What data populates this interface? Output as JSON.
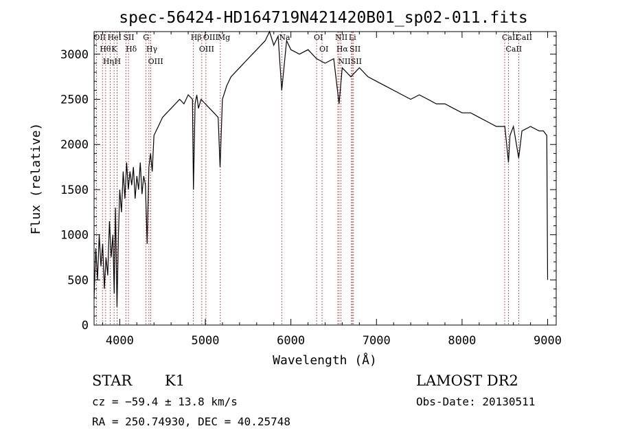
{
  "chart_data": {
    "type": "line",
    "title": "spec-56424-HD164719N421420B01_sp02-011.fits",
    "xlabel": "Wavelength (Å)",
    "ylabel": "Flux (relative)",
    "xlim": [
      3700,
      9100
    ],
    "ylim": [
      0,
      3250
    ],
    "x_ticks": [
      4000,
      5000,
      6000,
      7000,
      8000,
      9000
    ],
    "y_ticks": [
      0,
      500,
      1000,
      1500,
      2000,
      2500,
      3000
    ],
    "grid": false,
    "series": [
      {
        "x": [
          3700,
          3720,
          3740,
          3760,
          3780,
          3800,
          3820,
          3840,
          3860,
          3880,
          3900,
          3920,
          3935,
          3950,
          3968,
          3985,
          4000,
          4020,
          4040,
          4060,
          4080,
          4100,
          4120,
          4140,
          4160,
          4180,
          4200,
          4220,
          4240,
          4260,
          4280,
          4300,
          4320,
          4340,
          4360,
          4380,
          4400,
          4450,
          4500,
          4550,
          4600,
          4650,
          4700,
          4750,
          4800,
          4850,
          4861,
          4880,
          4900,
          4920,
          4950,
          5000,
          5050,
          5100,
          5150,
          5172,
          5200,
          5250,
          5300,
          5400,
          5500,
          5600,
          5700,
          5750,
          5800,
          5850,
          5893,
          5950,
          6000,
          6100,
          6200,
          6300,
          6400,
          6500,
          6563,
          6600,
          6700,
          6800,
          6900,
          7000,
          7100,
          7200,
          7300,
          7400,
          7500,
          7600,
          7700,
          7800,
          7900,
          8000,
          8100,
          8200,
          8300,
          8400,
          8500,
          8542,
          8560,
          8600,
          8662,
          8700,
          8800,
          8900,
          8950,
          8990,
          9000
        ],
        "y": [
          300,
          850,
          500,
          1000,
          650,
          900,
          400,
          750,
          550,
          1150,
          750,
          1000,
          350,
          1300,
          200,
          1000,
          1500,
          1250,
          1700,
          1400,
          1800,
          1500,
          1700,
          1550,
          1750,
          1400,
          1650,
          1500,
          1800,
          1450,
          1650,
          1550,
          900,
          1750,
          1900,
          1700,
          2100,
          2200,
          2300,
          2350,
          2400,
          2450,
          2500,
          2450,
          2550,
          2500,
          1500,
          2450,
          2550,
          2400,
          2500,
          2450,
          2400,
          2350,
          2300,
          1750,
          2500,
          2650,
          2750,
          2850,
          2950,
          3050,
          3150,
          3250,
          3100,
          3200,
          2600,
          3150,
          3050,
          3000,
          3050,
          2950,
          2900,
          2950,
          2450,
          2850,
          2750,
          2850,
          2750,
          2700,
          2650,
          2600,
          2550,
          2500,
          2550,
          2500,
          2450,
          2450,
          2400,
          2350,
          2350,
          2300,
          2250,
          2200,
          2200,
          1800,
          2100,
          2200,
          1850,
          2150,
          2200,
          2150,
          2150,
          2100,
          500
        ]
      }
    ],
    "line_markers": [
      {
        "x": 3727,
        "label": "OII"
      },
      {
        "x": 3798,
        "label": "Hθ"
      },
      {
        "x": 3835,
        "label": "Hη"
      },
      {
        "x": 3889,
        "label": "HeI"
      },
      {
        "x": 3934,
        "label": "K"
      },
      {
        "x": 3969,
        "label": "H"
      },
      {
        "x": 4072,
        "label": "SII"
      },
      {
        "x": 4102,
        "label": "Hδ"
      },
      {
        "x": 4304,
        "label": "G"
      },
      {
        "x": 4341,
        "label": "Hγ"
      },
      {
        "x": 4363,
        "label": "OIII"
      },
      {
        "x": 4861,
        "label": "Hβ"
      },
      {
        "x": 4959,
        "label": "OIII"
      },
      {
        "x": 5007,
        "label": "OIII"
      },
      {
        "x": 5175,
        "label": "Mg"
      },
      {
        "x": 5893,
        "label": "Na"
      },
      {
        "x": 6300,
        "label": "OI"
      },
      {
        "x": 6364,
        "label": "OI"
      },
      {
        "x": 6548,
        "label": "NII"
      },
      {
        "x": 6563,
        "label": "Hα"
      },
      {
        "x": 6583,
        "label": "NII"
      },
      {
        "x": 6708,
        "label": "Li"
      },
      {
        "x": 6717,
        "label": "SII"
      },
      {
        "x": 6731,
        "label": "SII"
      },
      {
        "x": 8498,
        "label": "CaII"
      },
      {
        "x": 8542,
        "label": "CaII"
      },
      {
        "x": 8662,
        "label": "CaII"
      }
    ]
  },
  "info": {
    "class_label": "STAR",
    "subclass": "K1",
    "survey": "LAMOST DR2",
    "cz": "cz = −59.4 ± 13.8 km/s",
    "obs_date": "Obs-Date: 20130511",
    "coords": "RA = 250.74930, DEC =  40.25748"
  },
  "colors": {
    "spectrum": "#000000",
    "marker_line": "#b03030"
  }
}
